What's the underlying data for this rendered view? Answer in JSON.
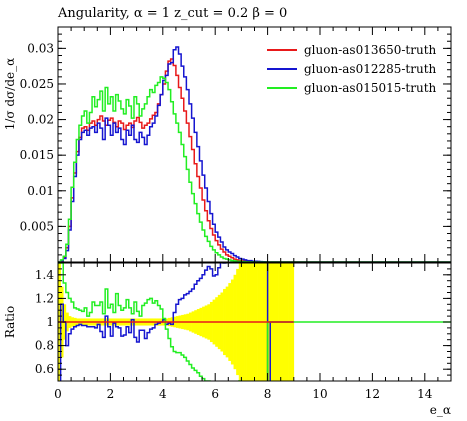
{
  "chart_data": {
    "type": "line",
    "title": "Angularity, α = 1 z_cut = 0.2 β = 0",
    "xlabel": "e_α",
    "ylabel_main": "1/σ dσ/de_α",
    "ylabel_ratio": "Ratio",
    "xlim": [
      0,
      15
    ],
    "ylim_main": [
      0,
      0.033
    ],
    "ylim_ratio": [
      0.5,
      1.5
    ],
    "x_ticks": [
      0,
      2,
      4,
      6,
      8,
      10,
      12,
      14
    ],
    "y_ticks_main": [
      0.005,
      0.01,
      0.015,
      0.02,
      0.025,
      0.03
    ],
    "y_tick_labels_main": [
      "0.005",
      "0.01",
      "0.015",
      "0.02",
      "0.025",
      "0.03"
    ],
    "y_ticks_ratio": [
      0.6,
      0.8,
      1.0,
      1.2,
      1.4
    ],
    "y_tick_labels_ratio": [
      "0.6",
      "0.8",
      "1",
      "1.2",
      "1.4"
    ],
    "legend_placement": "top-right",
    "bin_width": 0.1,
    "x_start": 0.0,
    "series": [
      {
        "name": "gluon-as013650-truth",
        "color": "#e8191a",
        "values": [
          0,
          0.0002,
          0.0006,
          0.002,
          0.005,
          0.009,
          0.0125,
          0.0155,
          0.0175,
          0.0188,
          0.019,
          0.0185,
          0.0195,
          0.0198,
          0.0192,
          0.02,
          0.0205,
          0.0198,
          0.0192,
          0.0199,
          0.0202,
          0.0196,
          0.019,
          0.0198,
          0.0195,
          0.0186,
          0.0192,
          0.0195,
          0.0189,
          0.0198,
          0.0203,
          0.0196,
          0.0188,
          0.0192,
          0.0195,
          0.0201,
          0.0206,
          0.021,
          0.0222,
          0.0235,
          0.025,
          0.0268,
          0.0282,
          0.0285,
          0.0276,
          0.0262,
          0.0245,
          0.023,
          0.0212,
          0.0195,
          0.0176,
          0.0158,
          0.0138,
          0.012,
          0.0104,
          0.0087,
          0.0072,
          0.0058,
          0.0047,
          0.0038,
          0.003,
          0.0024,
          0.0018,
          0.0014,
          0.001,
          0.0008,
          0.0006,
          0.0004,
          0.0003,
          0.0002,
          0.00015,
          0.0001,
          0.0001,
          6e-05,
          4e-05,
          3e-05,
          2e-05,
          1e-05,
          1e-05,
          1e-05,
          0,
          0,
          0,
          0,
          0,
          0,
          0,
          0,
          0,
          0,
          0,
          0,
          0,
          0,
          0,
          0,
          0,
          0,
          0,
          0,
          0,
          0,
          0,
          0,
          0,
          0,
          0,
          0,
          0,
          0,
          0,
          0,
          0,
          0,
          0,
          0,
          0,
          0,
          0,
          0,
          0,
          0,
          0,
          0,
          0,
          0,
          0,
          0,
          0,
          0,
          0,
          0,
          0,
          0,
          0,
          0,
          0,
          0,
          0,
          0,
          0,
          0,
          0,
          0,
          0,
          0,
          0,
          0,
          0,
          0,
          0,
          0,
          0,
          0,
          0,
          0,
          0,
          0,
          0,
          0,
          0,
          0,
          0,
          0,
          0,
          0
        ]
      },
      {
        "name": "gluon-as012285-truth",
        "color": "#1515d0",
        "values": [
          0,
          0.0002,
          0.0005,
          0.0016,
          0.0045,
          0.0085,
          0.012,
          0.015,
          0.0172,
          0.0182,
          0.0185,
          0.0178,
          0.0188,
          0.019,
          0.0182,
          0.0195,
          0.0188,
          0.0172,
          0.0202,
          0.0192,
          0.0178,
          0.0195,
          0.0182,
          0.0188,
          0.0172,
          0.0165,
          0.0185,
          0.0178,
          0.0192,
          0.0172,
          0.0168,
          0.0182,
          0.0175,
          0.0165,
          0.0178,
          0.019,
          0.0195,
          0.0205,
          0.022,
          0.0235,
          0.0255,
          0.0262,
          0.0278,
          0.028,
          0.0298,
          0.0302,
          0.0292,
          0.0275,
          0.026,
          0.0242,
          0.0222,
          0.0202,
          0.0182,
          0.0162,
          0.0142,
          0.0122,
          0.0104,
          0.0085,
          0.0068,
          0.0053,
          0.0042,
          0.0035,
          0.0028,
          0.0021,
          0.0017,
          0.0014,
          0.0012,
          0.0009,
          0.0007,
          0.0005,
          0.0004,
          0.0003,
          0.0002,
          0.0002,
          0.0001,
          0.0001,
          8e-05,
          5e-05,
          3e-05,
          2e-05,
          0,
          0,
          0,
          0,
          0,
          0,
          0,
          0,
          0,
          0,
          0,
          0,
          0,
          0,
          0,
          0,
          0,
          0,
          0,
          0,
          0,
          0,
          0,
          0,
          0,
          0,
          0,
          0,
          0,
          0,
          0,
          0,
          0,
          0,
          0,
          0,
          0,
          0,
          0,
          0,
          0,
          0,
          0,
          0,
          0,
          0,
          0,
          0,
          0,
          0,
          0,
          0,
          0,
          0,
          0,
          0,
          0,
          0,
          0,
          0,
          0,
          0,
          0,
          0,
          0,
          0,
          0,
          0,
          0,
          0,
          0,
          0,
          0,
          0,
          0,
          0,
          0,
          0,
          0,
          0,
          0,
          0,
          0,
          0,
          0,
          0
        ]
      },
      {
        "name": "gluon-as015015-truth",
        "color": "#22ee22",
        "values": [
          0,
          0.0003,
          0.0008,
          0.0025,
          0.006,
          0.0105,
          0.014,
          0.0172,
          0.0192,
          0.0205,
          0.0212,
          0.0195,
          0.021,
          0.0232,
          0.0218,
          0.0228,
          0.024,
          0.0212,
          0.0245,
          0.0222,
          0.0232,
          0.0212,
          0.0235,
          0.0226,
          0.0215,
          0.0208,
          0.0228,
          0.0219,
          0.0202,
          0.0232,
          0.0222,
          0.0205,
          0.0215,
          0.0222,
          0.0232,
          0.0242,
          0.0238,
          0.0248,
          0.0252,
          0.026,
          0.0258,
          0.0252,
          0.0242,
          0.0225,
          0.0208,
          0.0195,
          0.0182,
          0.0165,
          0.0148,
          0.013,
          0.0112,
          0.0096,
          0.0082,
          0.0068,
          0.0056,
          0.0045,
          0.0036,
          0.0029,
          0.0022,
          0.0017,
          0.0013,
          0.001,
          0.0007,
          0.0005,
          0.0004,
          0.0003,
          0.0002,
          0.00015,
          0.0001,
          0.0001,
          5e-05,
          3e-05,
          2e-05,
          1e-05,
          0,
          0,
          0,
          0,
          0,
          0,
          0,
          0,
          0,
          0,
          0,
          0,
          0,
          0,
          0,
          0,
          0,
          0,
          0,
          0,
          0,
          0,
          0,
          0,
          0,
          0,
          0,
          0,
          0,
          0,
          0,
          0,
          0,
          0,
          0,
          0,
          0,
          0,
          0,
          0,
          0,
          0,
          0,
          0,
          0,
          0,
          0,
          0,
          0,
          0,
          0,
          0,
          0,
          0,
          0,
          0,
          0,
          0,
          0,
          0,
          0,
          0,
          0,
          0,
          0,
          0,
          0,
          0,
          0,
          0,
          0,
          0,
          0,
          0,
          0,
          0,
          0,
          0,
          0,
          0,
          0,
          0,
          0,
          0,
          0,
          0
        ]
      }
    ],
    "ratio_series": [
      {
        "name": "gluon-as012285-truth",
        "color": "#1515d0",
        "values": [
          0.4,
          1.15,
          1.0,
          0.8,
          0.9,
          0.94,
          0.96,
          0.97,
          0.98,
          0.97,
          0.97,
          0.96,
          0.96,
          0.96,
          0.95,
          0.98,
          0.92,
          0.87,
          1.05,
          0.96,
          0.88,
          0.99,
          0.96,
          0.95,
          0.88,
          0.89,
          0.96,
          0.91,
          1.02,
          0.87,
          0.83,
          0.93,
          0.93,
          0.86,
          0.91,
          0.94,
          0.95,
          0.98,
          0.99,
          1.0,
          1.02,
          0.98,
          0.99,
          0.98,
          1.08,
          1.15,
          1.19,
          1.2,
          1.23,
          1.24,
          1.26,
          1.28,
          1.32,
          1.35,
          1.37,
          1.4,
          1.44,
          1.47,
          1.45,
          1.39,
          1.4,
          1.46,
          1.55,
          1.5,
          1.7,
          1.75,
          2.0,
          2.25,
          2.3,
          2.5,
          2.6,
          3.0,
          2.0,
          3.3,
          2.5,
          3.3,
          4.0,
          5.0,
          3.0,
          2.0,
          0.4,
          1.0,
          1.0,
          1.0,
          1.0,
          1.0,
          1.0,
          1.0,
          1.0,
          1.0
        ]
      },
      {
        "name": "gluon-as015015-truth",
        "color": "#22ee22",
        "values": [
          1.5,
          1.5,
          1.33,
          1.25,
          1.2,
          1.17,
          1.12,
          1.11,
          1.1,
          1.09,
          1.12,
          1.05,
          1.08,
          1.17,
          1.14,
          1.14,
          1.17,
          1.07,
          1.28,
          1.12,
          1.15,
          1.08,
          1.24,
          1.14,
          1.1,
          1.12,
          1.19,
          1.12,
          1.07,
          1.17,
          1.09,
          1.05,
          1.14,
          1.16,
          1.19,
          1.2,
          1.16,
          1.18,
          1.14,
          1.11,
          1.03,
          0.94,
          0.86,
          0.79,
          0.75,
          0.74,
          0.74,
          0.72,
          0.7,
          0.67,
          0.64,
          0.61,
          0.59,
          0.57,
          0.54,
          0.52,
          0.5,
          0.5,
          0.47,
          0.45,
          0.43,
          0.42,
          0.39,
          0.36,
          0.4,
          0.38,
          0.33,
          0.38,
          0.33,
          0.5,
          0.33,
          0.3,
          0.3,
          0.2,
          0.0,
          0.0,
          0.0,
          0.0,
          0.0,
          0.0,
          1.0,
          1.0,
          1.0,
          1.0,
          1.0,
          1.0,
          1.0,
          1.0,
          1.0,
          1.0
        ]
      },
      {
        "name": "gluon-as013650-truth",
        "color": "#e8191a",
        "values": [
          1.0,
          1.0,
          1.0,
          1.0,
          1.0,
          1.0,
          1.0,
          1.0,
          1.0,
          1.0,
          1.0,
          1.0,
          1.0,
          1.0,
          1.0,
          1.0,
          1.0,
          1.0,
          1.0,
          1.0,
          1.0,
          1.0,
          1.0,
          1.0,
          1.0,
          1.0,
          1.0,
          1.0,
          1.0,
          1.0,
          1.0,
          1.0,
          1.0,
          1.0,
          1.0,
          1.0,
          1.0,
          1.0,
          1.0,
          1.0,
          1.0,
          1.0,
          1.0,
          1.0,
          1.0,
          1.0,
          1.0,
          1.0,
          1.0,
          1.0,
          1.0,
          1.0,
          1.0,
          1.0,
          1.0,
          1.0,
          1.0,
          1.0,
          1.0,
          1.0,
          1.0,
          1.0,
          1.0,
          1.0,
          1.0,
          1.0,
          1.0,
          1.0,
          1.0,
          1.0,
          1.0,
          1.0,
          1.0,
          1.0,
          1.0,
          1.0,
          1.0,
          1.0,
          1.0,
          1.0,
          1.0,
          1.0,
          1.0,
          1.0,
          1.0,
          1.0,
          1.0,
          1.0,
          1.0,
          1.0
        ]
      }
    ],
    "uncertainty_band": {
      "color": "#ffff00",
      "half_width": [
        0.5,
        0.3,
        0.15,
        0.08,
        0.05,
        0.04,
        0.035,
        0.03,
        0.03,
        0.03,
        0.03,
        0.03,
        0.03,
        0.03,
        0.03,
        0.03,
        0.03,
        0.03,
        0.03,
        0.03,
        0.03,
        0.03,
        0.03,
        0.03,
        0.03,
        0.03,
        0.03,
        0.03,
        0.03,
        0.03,
        0.03,
        0.03,
        0.03,
        0.03,
        0.03,
        0.03,
        0.03,
        0.03,
        0.03,
        0.03,
        0.03,
        0.03,
        0.035,
        0.04,
        0.045,
        0.05,
        0.055,
        0.06,
        0.065,
        0.07,
        0.08,
        0.09,
        0.1,
        0.11,
        0.12,
        0.13,
        0.14,
        0.15,
        0.17,
        0.19,
        0.21,
        0.23,
        0.25,
        0.28,
        0.3,
        0.33,
        0.36,
        0.4,
        0.45,
        0.5,
        0.55,
        0.6,
        0.65,
        0.7,
        0.75,
        0.8,
        0.85,
        0.9,
        0.95,
        1.0,
        1.0,
        1.0,
        1.0,
        1.0,
        1.0,
        1.0,
        1.0,
        1.0,
        1.0,
        1.0
      ]
    }
  }
}
